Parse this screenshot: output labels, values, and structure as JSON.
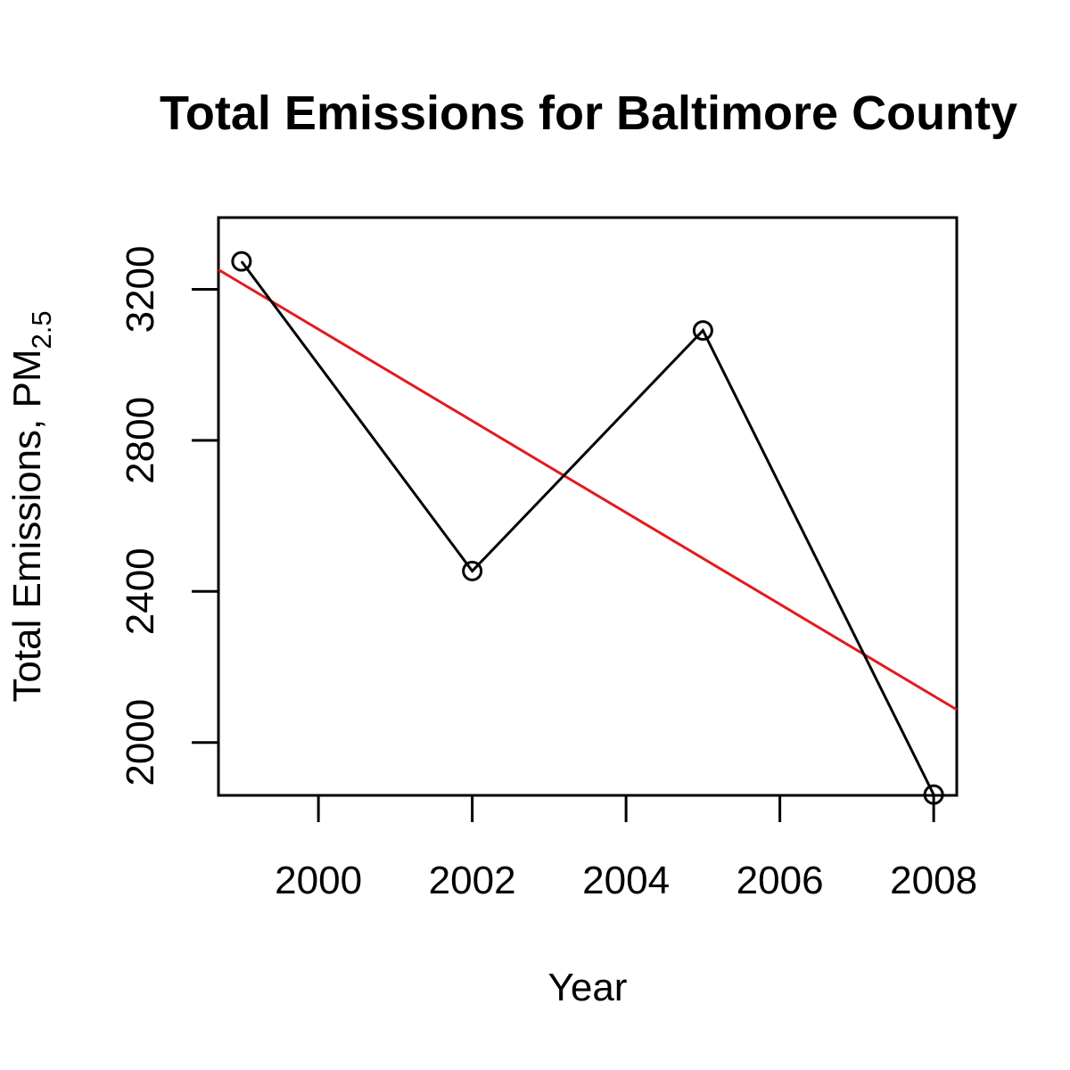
{
  "chart_data": {
    "type": "line",
    "title": "Total Emissions for Baltimore County",
    "xlabel": "Year",
    "ylabel": {
      "main": "Total Emissions, PM",
      "subscript": "2.5"
    },
    "xlim": [
      1998.7,
      2008.3
    ],
    "ylim": [
      1860,
      3390
    ],
    "x_ticks": [
      "2000",
      "2002",
      "2004",
      "2006",
      "2008"
    ],
    "y_ticks": [
      "2000",
      "2400",
      "2800",
      "3200"
    ],
    "series": [
      {
        "x": [
          1999,
          2002,
          2005,
          2008
        ],
        "values": [
          3274,
          2454,
          3091,
          1862
        ],
        "color": "#000000",
        "marker": "open-circle"
      }
    ],
    "trend_line": {
      "x": [
        1998.7,
        2008.3
      ],
      "values": [
        3252,
        2087
      ],
      "color": "#e31a1c"
    },
    "grid": false,
    "legend": "none"
  }
}
